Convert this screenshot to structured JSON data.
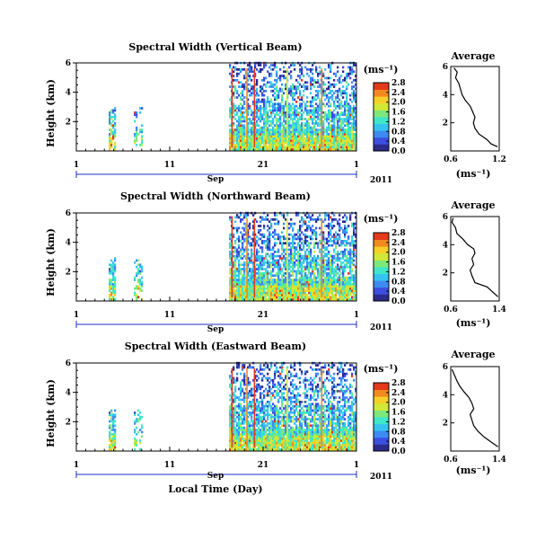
{
  "chart_data": {
    "type": "heatmap",
    "xlabel": "Local Time (Day)",
    "month_label": "Sep",
    "year_label": "2011",
    "colormap": [
      "#2b2b8c",
      "#3b4fe0",
      "#3d8bf2",
      "#36c3f0",
      "#3fe6c8",
      "#7de87a",
      "#d2e836",
      "#f5d028",
      "#f38a20",
      "#e23a1a"
    ],
    "panels": [
      {
        "title": "Spectral Width (Vertical Beam)",
        "ylabel": "Height (km)",
        "yticks": [
          "2",
          "4",
          "6"
        ],
        "ylim": [
          0,
          6
        ],
        "xticks": [
          "1",
          "11",
          "21",
          "1"
        ],
        "xlim": [
          1,
          31
        ],
        "colorbar": {
          "unit": "(ms⁻¹)",
          "ticks": [
            "0.0",
            "0.4",
            "0.8",
            "1.2",
            "1.6",
            "2.0",
            "2.4",
            "2.8"
          ]
        },
        "average": {
          "title": "Average",
          "xlabel": "(ms⁻¹)",
          "xticks": [
            "0.6",
            "1.2"
          ],
          "xlim": [
            0.6,
            1.2
          ],
          "ylim": [
            0,
            6
          ],
          "yticks": [
            "2",
            "4",
            "6"
          ],
          "points": [
            [
              1.18,
              0.3
            ],
            [
              1.1,
              0.5
            ],
            [
              1.05,
              0.8
            ],
            [
              0.95,
              1.2
            ],
            [
              0.9,
              1.6
            ],
            [
              0.88,
              2.0
            ],
            [
              0.9,
              2.4
            ],
            [
              0.87,
              2.8
            ],
            [
              0.84,
              3.2
            ],
            [
              0.78,
              3.6
            ],
            [
              0.74,
              4.0
            ],
            [
              0.72,
              4.4
            ],
            [
              0.7,
              4.8
            ],
            [
              0.66,
              5.2
            ],
            [
              0.68,
              5.6
            ],
            [
              0.64,
              5.9
            ]
          ]
        }
      },
      {
        "title": "Spectral Width (Northward Beam)",
        "ylabel": "Height (km)",
        "yticks": [
          "2",
          "4",
          "6"
        ],
        "ylim": [
          0,
          6
        ],
        "xticks": [
          "1",
          "11",
          "21",
          "1"
        ],
        "xlim": [
          1,
          31
        ],
        "colorbar": {
          "unit": "(ms⁻¹)",
          "ticks": [
            "0.0",
            "0.4",
            "0.8",
            "1.2",
            "1.6",
            "2.0",
            "2.4",
            "2.8"
          ]
        },
        "average": {
          "title": "Average",
          "xlabel": "(ms⁻¹)",
          "xticks": [
            "0.6",
            "1.4"
          ],
          "xlim": [
            0.6,
            1.4
          ],
          "ylim": [
            0,
            6
          ],
          "yticks": [
            "2",
            "4",
            "6"
          ],
          "points": [
            [
              1.38,
              0.3
            ],
            [
              1.3,
              0.6
            ],
            [
              1.2,
              1.0
            ],
            [
              1.0,
              1.3
            ],
            [
              0.95,
              1.8
            ],
            [
              0.92,
              2.2
            ],
            [
              0.98,
              2.6
            ],
            [
              0.95,
              3.0
            ],
            [
              1.0,
              3.4
            ],
            [
              0.98,
              3.7
            ],
            [
              0.88,
              4.0
            ],
            [
              0.8,
              4.4
            ],
            [
              0.7,
              4.8
            ],
            [
              0.68,
              5.2
            ],
            [
              0.62,
              5.6
            ],
            [
              0.64,
              5.9
            ]
          ]
        }
      },
      {
        "title": "Spectral Width (Eastward Beam)",
        "ylabel": "Height (km)",
        "yticks": [
          "2",
          "4",
          "6"
        ],
        "ylim": [
          0,
          6
        ],
        "xticks": [
          "1",
          "11",
          "21",
          "1"
        ],
        "xlim": [
          1,
          31
        ],
        "colorbar": {
          "unit": "(ms⁻¹)",
          "ticks": [
            "0.0",
            "0.4",
            "0.8",
            "1.2",
            "1.6",
            "2.0",
            "2.4",
            "2.8"
          ]
        },
        "average": {
          "title": "Average",
          "xlabel": "(ms⁻¹)",
          "xticks": [
            "0.6",
            "1.4"
          ],
          "xlim": [
            0.6,
            1.4
          ],
          "ylim": [
            0,
            6
          ],
          "yticks": [
            "2",
            "4",
            "6"
          ],
          "points": [
            [
              1.38,
              0.3
            ],
            [
              1.28,
              0.6
            ],
            [
              1.15,
              1.0
            ],
            [
              1.05,
              1.4
            ],
            [
              0.98,
              1.8
            ],
            [
              0.95,
              2.2
            ],
            [
              0.92,
              2.6
            ],
            [
              0.98,
              3.0
            ],
            [
              0.95,
              3.4
            ],
            [
              0.9,
              3.8
            ],
            [
              0.82,
              4.2
            ],
            [
              0.75,
              4.6
            ],
            [
              0.7,
              5.0
            ],
            [
              0.66,
              5.4
            ],
            [
              0.62,
              5.8
            ]
          ]
        }
      }
    ]
  }
}
